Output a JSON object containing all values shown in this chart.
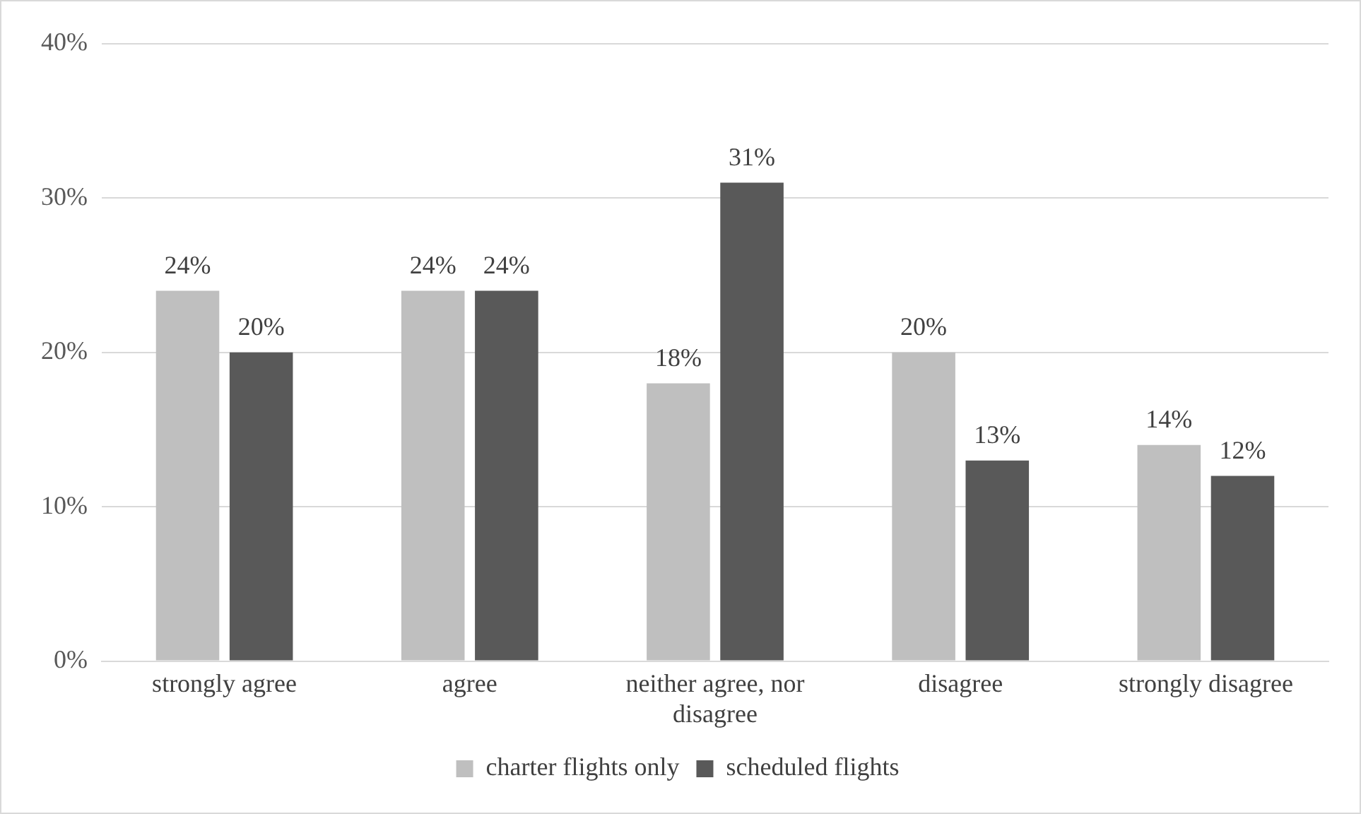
{
  "chart_data": {
    "type": "bar",
    "categories": [
      "strongly agree",
      "agree",
      "neither agree, nor disagree",
      "disagree",
      "strongly disagree"
    ],
    "series": [
      {
        "name": "charter flights only",
        "color": "#bfbfbf",
        "values": [
          24,
          24,
          18,
          20,
          14
        ],
        "value_labels": [
          "24%",
          "24%",
          "18%",
          "20%",
          "14%"
        ]
      },
      {
        "name": "scheduled flights",
        "color": "#595959",
        "values": [
          20,
          24,
          31,
          13,
          12
        ],
        "value_labels": [
          "20%",
          "24%",
          "31%",
          "13%",
          "12%"
        ]
      }
    ],
    "ylim": [
      0,
      40
    ],
    "yticks": [
      {
        "value": 0,
        "label": "0%"
      },
      {
        "value": 10,
        "label": "10%"
      },
      {
        "value": 20,
        "label": "20%"
      },
      {
        "value": 30,
        "label": "30%"
      },
      {
        "value": 40,
        "label": "40%"
      }
    ],
    "grid": "y",
    "legend": "bottom"
  }
}
